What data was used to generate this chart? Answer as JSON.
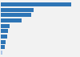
{
  "values": [
    4200,
    1950,
    1800,
    1250,
    520,
    430,
    370,
    310,
    260,
    100
  ],
  "bar_color": "#2e75b6",
  "last_bar_color": "#aec7e8",
  "background_color": "#f2f2f2",
  "xlim": [
    0,
    4700
  ],
  "figsize": [
    1.0,
    0.71
  ],
  "dpi": 100,
  "bar_height": 0.75
}
